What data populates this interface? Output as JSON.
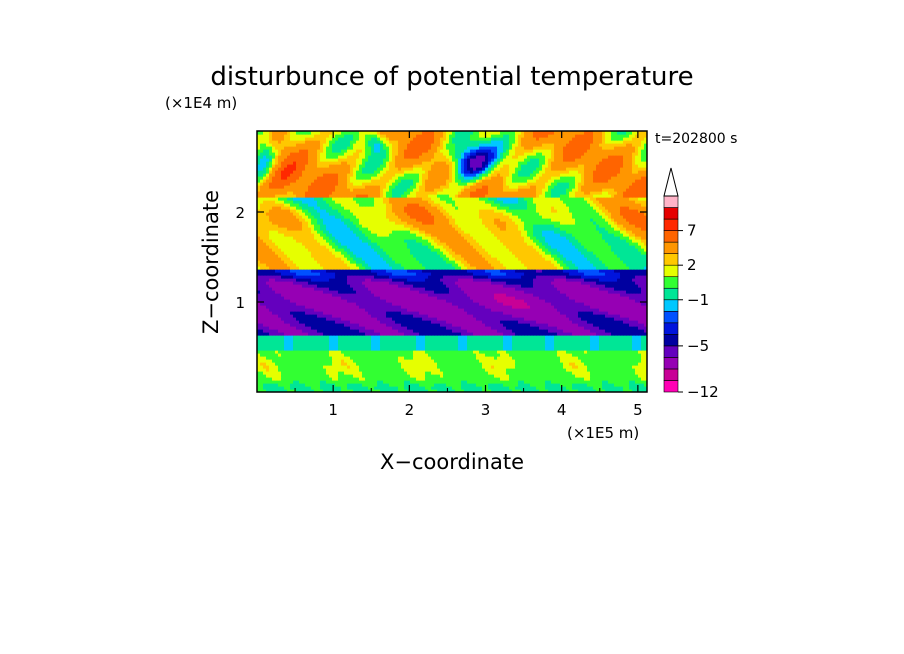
{
  "chart_data": {
    "type": "heatmap",
    "title": "disturbunce of potential temperature",
    "time_label": "t=202800 s",
    "xlabel": "X−coordinate",
    "ylabel": "Z−coordinate",
    "x_unit": "(×1E5 m)",
    "y_unit": "(×1E4 m)",
    "xlim": [
      0,
      5.12
    ],
    "ylim": [
      0,
      2.9
    ],
    "x_ticks": [
      1,
      2,
      3,
      4,
      5
    ],
    "x_tick_labels": [
      "1",
      "2",
      "3",
      "4",
      "5"
    ],
    "y_ticks": [
      1,
      2
    ],
    "y_tick_labels": [
      "1",
      "2"
    ],
    "colorbar": {
      "levels": [
        -12,
        -10,
        -8,
        -6,
        -5,
        -4,
        -3,
        -2,
        -1,
        0,
        1,
        2,
        3,
        5,
        7,
        9,
        11
      ],
      "colors": [
        "#ff00b4",
        "#c80096",
        "#9600b4",
        "#6400be",
        "#0000a0",
        "#0014dc",
        "#0050ff",
        "#00c8ff",
        "#00e696",
        "#32ff32",
        "#e6ff00",
        "#ffc800",
        "#ff9600",
        "#ff6400",
        "#ff2800",
        "#e60000",
        "#ffb4c8"
      ],
      "labeled_values": [
        -12,
        -5,
        -1,
        2,
        7
      ],
      "labels": [
        "−12",
        "−5",
        "−1",
        "2",
        "7"
      ],
      "top_extension_color": "#ffffff"
    },
    "layers": [
      {
        "z": [
          2.15,
          2.9
        ],
        "dominant": "orange/red/yellow, blue patches near x=2.8 and x=0.1"
      },
      {
        "z": [
          1.35,
          2.15
        ],
        "dominant": "yellow/green with orange streaks"
      },
      {
        "z": [
          0.65,
          1.35
        ],
        "dominant": "blue/dark blue"
      },
      {
        "z": [
          0.45,
          0.65
        ],
        "dominant": "cyan"
      },
      {
        "z": [
          0.0,
          0.45
        ],
        "dominant": "green with yellow blobs"
      }
    ]
  }
}
